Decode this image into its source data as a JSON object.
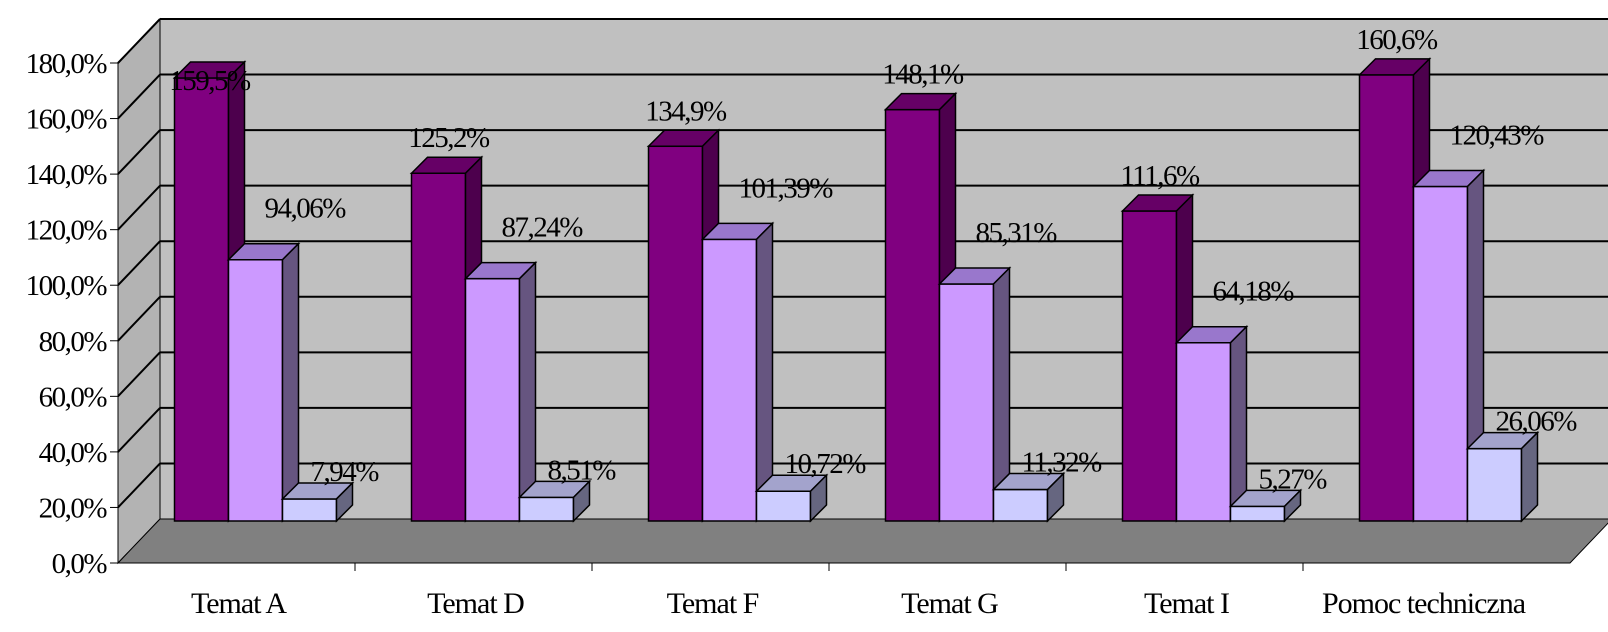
{
  "chart_data": {
    "type": "bar",
    "categories": [
      "Temat A",
      "Temat D",
      "Temat F",
      "Temat G",
      "Temat I",
      "Pomoc techniczna"
    ],
    "series": [
      {
        "values": [
          159.5,
          125.2,
          134.9,
          148.1,
          111.6,
          160.6
        ],
        "labels": [
          "159,5%",
          "125,2%",
          "134,9%",
          "148,1%",
          "111,6%",
          "160,6%"
        ]
      },
      {
        "values": [
          94.06,
          87.24,
          101.39,
          85.31,
          64.18,
          120.43
        ],
        "labels": [
          "94,06%",
          "87,24%",
          "101,39%",
          "85,31%",
          "64,18%",
          "120,43%"
        ]
      },
      {
        "values": [
          7.94,
          8.51,
          10.72,
          11.32,
          5.27,
          26.06
        ],
        "labels": [
          "7,94%",
          "8,51%",
          "10,72%",
          "11,32%",
          "5,27%",
          "26,06%"
        ]
      }
    ],
    "ylim": [
      0,
      180
    ],
    "yticks": [
      "0,0%",
      "20,0%",
      "40,0%",
      "60,0%",
      "80,0%",
      "100,0%",
      "120,0%",
      "140,0%",
      "160,0%",
      "180,0%"
    ],
    "three_d": true,
    "grid": true,
    "legend": "none",
    "colors": {
      "series": [
        "#800080",
        "#cc99ff",
        "#ccccff"
      ],
      "series_top": [
        "#660066",
        "#9977cc",
        "#a3a3cc"
      ],
      "series_side": [
        "#4d004d",
        "#665580",
        "#666680"
      ],
      "back_wall": "#c0c0c0",
      "side_wall": "#b3b3b3",
      "floor": "#808080",
      "grid": "#000000"
    }
  }
}
